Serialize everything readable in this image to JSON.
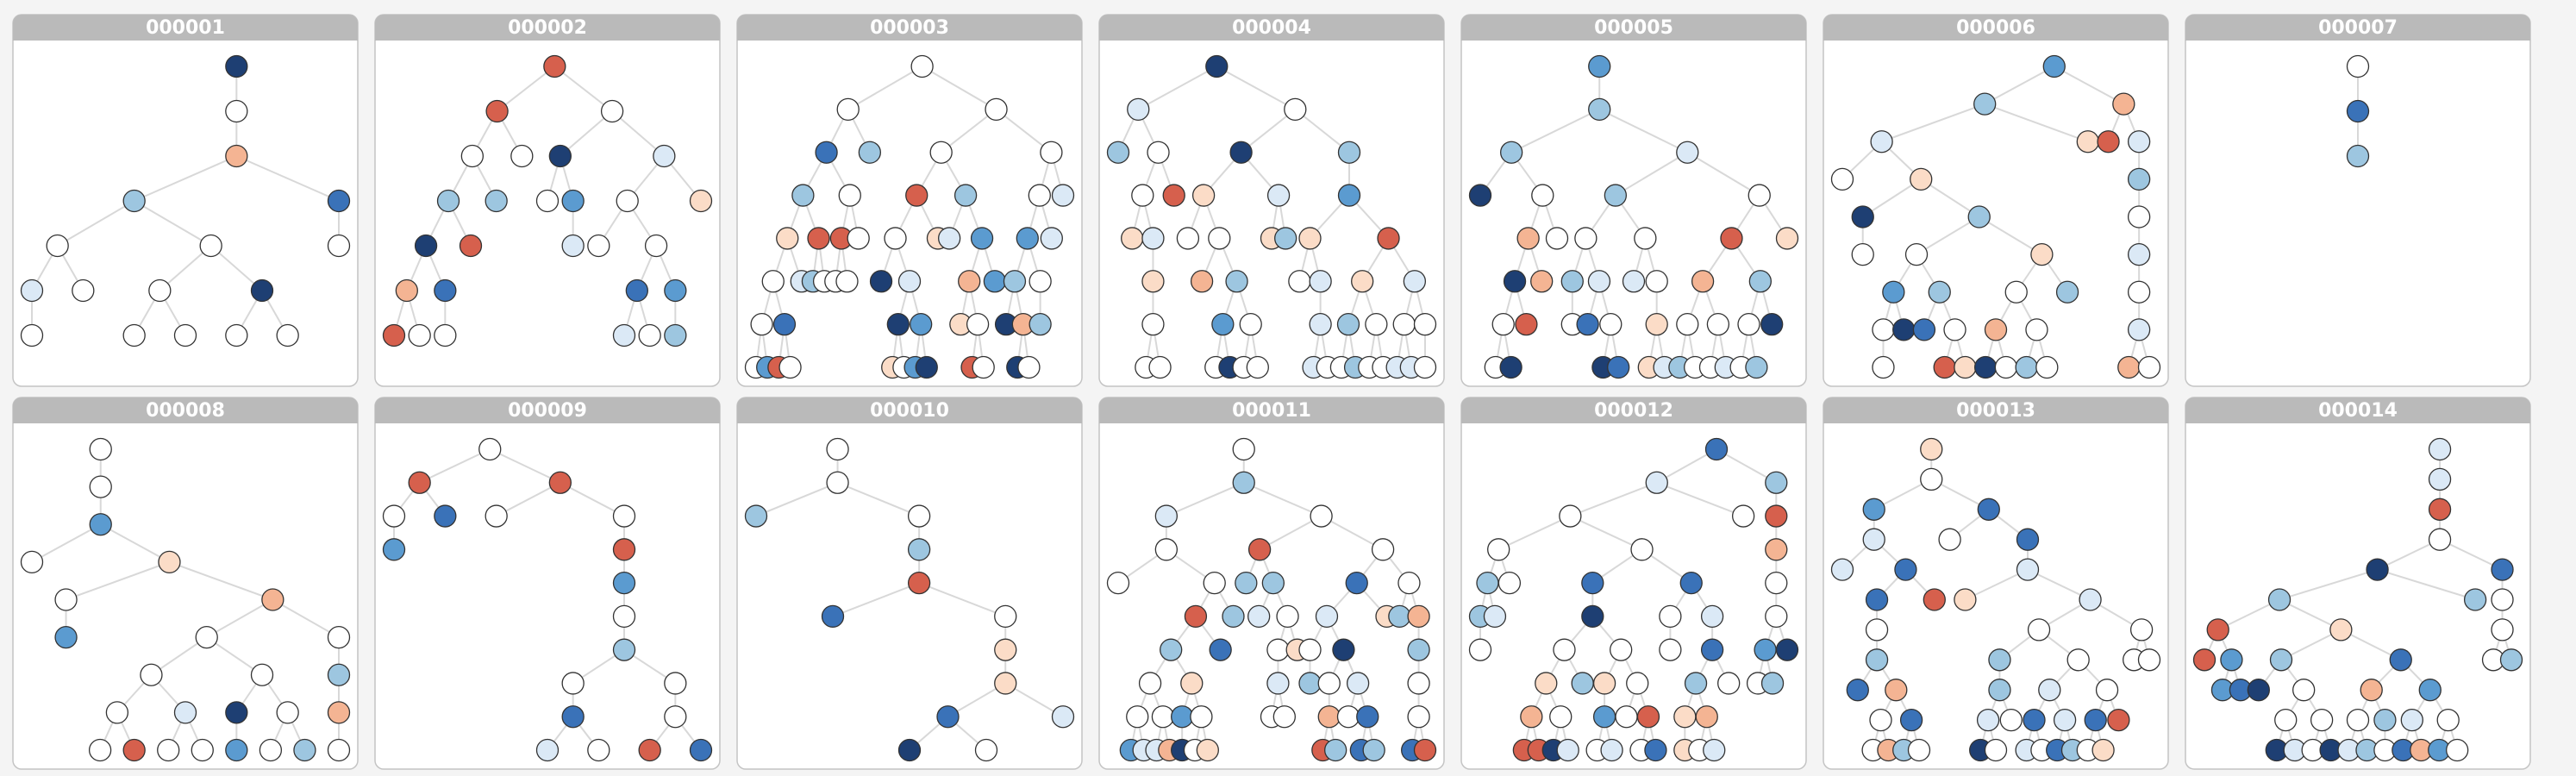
{
  "panels": [
    {
      "title": "000001"
    },
    {
      "title": "000002"
    },
    {
      "title": "000003"
    },
    {
      "title": "000004"
    },
    {
      "title": "000005"
    },
    {
      "title": "000006"
    },
    {
      "title": "000007"
    },
    {
      "title": "000008"
    },
    {
      "title": "000009"
    },
    {
      "title": "000010"
    },
    {
      "title": "000011"
    },
    {
      "title": "000012"
    },
    {
      "title": "000013"
    },
    {
      "title": "000014"
    }
  ]
}
